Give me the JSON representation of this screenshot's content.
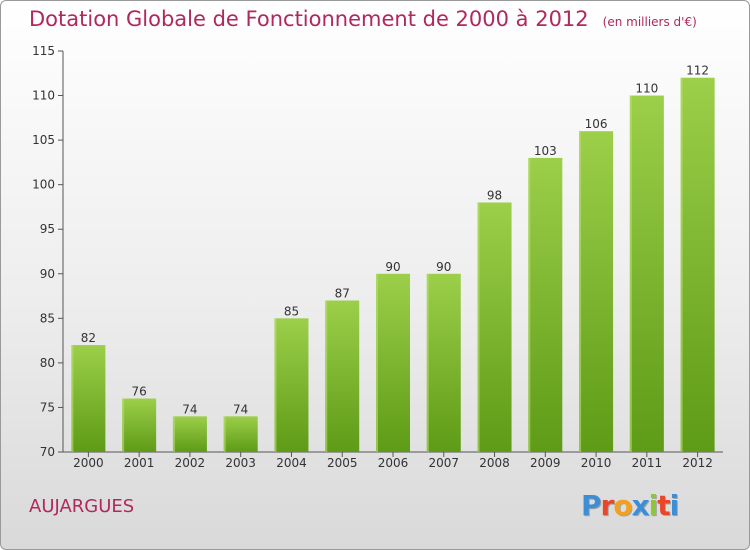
{
  "title": "Dotation Globale de Fonctionnement de 2000 à 2012",
  "unit_note": "(en milliers d'€)",
  "commune": "AUJARGUES",
  "logo": {
    "text": "Proxiti",
    "letter_colors": [
      "#3e8ed6",
      "#e8472c",
      "#f2a01e",
      "#3e8ed6",
      "#8cc63f",
      "#e8472c",
      "#3e8ed6"
    ]
  },
  "colors": {
    "title": "#b0285d",
    "bar_top": "#9ccf4a",
    "bar_bottom": "#5e9b16",
    "axis": "#555555"
  },
  "chart_data": {
    "type": "bar",
    "title": "Dotation Globale de Fonctionnement de 2000 à 2012",
    "categories": [
      "2000",
      "2001",
      "2002",
      "2003",
      "2004",
      "2005",
      "2006",
      "2007",
      "2008",
      "2009",
      "2010",
      "2011",
      "2012"
    ],
    "values": [
      82,
      76,
      74,
      74,
      85,
      87,
      90,
      90,
      98,
      103,
      106,
      110,
      112
    ],
    "ylim": [
      70,
      115
    ],
    "yticks": [
      70,
      75,
      80,
      85,
      90,
      95,
      100,
      105,
      110,
      115
    ],
    "grid": false,
    "data_labels": true
  }
}
